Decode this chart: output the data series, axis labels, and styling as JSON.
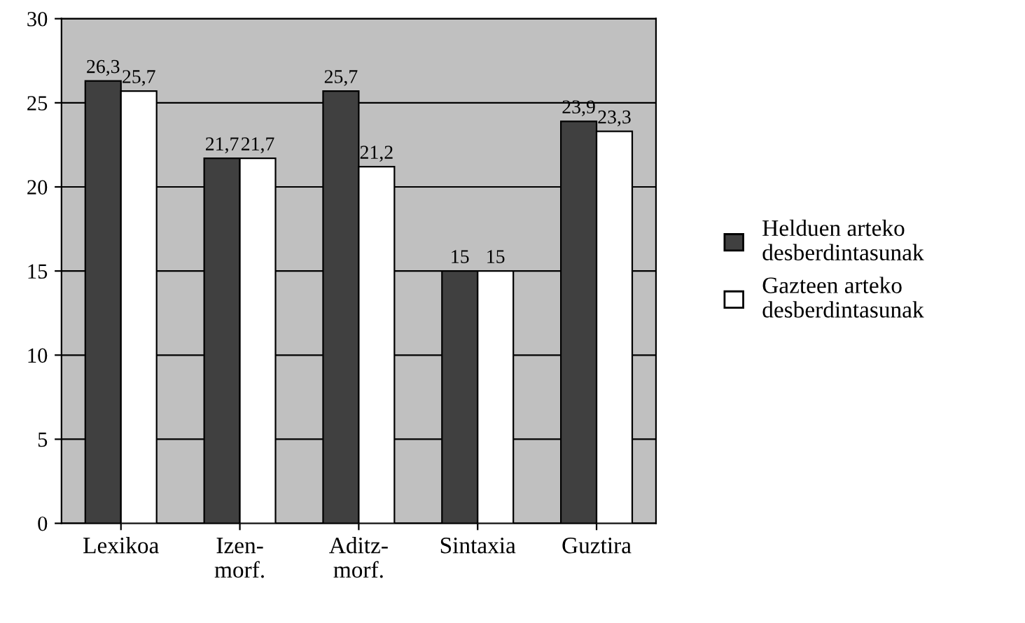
{
  "chart_data": {
    "type": "bar",
    "categories": [
      "Lexikoa",
      "Izen-\nmorf.",
      "Aditz-\nmorf.",
      "Sintaxia",
      "Guztira"
    ],
    "series": [
      {
        "name": "Helduen arteko\ndesberdintasunak",
        "color": "#404040",
        "values": [
          26.3,
          21.7,
          25.7,
          15,
          23.9
        ],
        "value_labels": [
          "26,3",
          "21,7",
          "25,7",
          "15",
          "23,9"
        ]
      },
      {
        "name": "Gazteen arteko\ndesberdintasunak",
        "color": "#ffffff",
        "values": [
          25.7,
          21.7,
          21.2,
          15,
          23.3
        ],
        "value_labels": [
          "25,7",
          "21,7",
          "21,2",
          "15",
          "23,3"
        ]
      }
    ],
    "ylim": [
      0,
      30
    ],
    "yticks": [
      0,
      5,
      10,
      15,
      20,
      25,
      30
    ],
    "grid": "y",
    "legend": "right"
  }
}
